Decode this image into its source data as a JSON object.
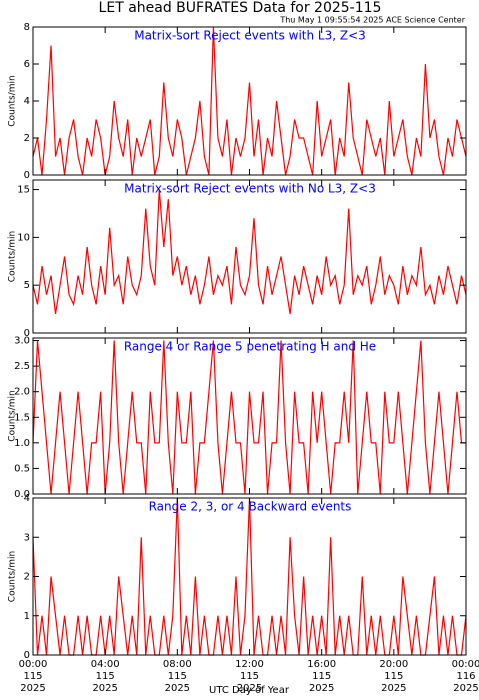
{
  "title": "LET ahead BUFRATES Data for 2025-115",
  "timestamp": "Thu May  1 09:55:54 2025 ACE Science Center",
  "xlabel": "UTC Day of Year",
  "xaxis": {
    "xlim": [
      0,
      24
    ],
    "xticks": [
      {
        "value": 0,
        "label": "00:00"
      },
      {
        "value": 4,
        "label": "04:00"
      },
      {
        "value": 8,
        "label": "08:00"
      },
      {
        "value": 12,
        "label": "12:00"
      },
      {
        "value": 16,
        "label": "16:00"
      },
      {
        "value": 20,
        "label": "20:00"
      },
      {
        "value": 24,
        "label": "00:00"
      }
    ],
    "doy": [
      "115",
      "115",
      "115",
      "115",
      "115",
      "115",
      "116"
    ],
    "year": [
      "2025",
      "2025",
      "2025",
      "2025",
      "2025",
      "2025",
      "2025"
    ]
  },
  "chart_data": [
    {
      "type": "line",
      "title": "Matrix-sort Reject events with L3, Z<3",
      "ylabel": "Counts/min",
      "color": "#ff0000",
      "ylim": [
        0,
        8
      ],
      "yticks": [
        0,
        2,
        4,
        6,
        8
      ],
      "x": [
        0,
        0.25,
        0.5,
        0.75,
        1,
        1.25,
        1.5,
        1.75,
        2,
        2.25,
        2.5,
        2.75,
        3,
        3.25,
        3.5,
        3.75,
        4,
        4.25,
        4.5,
        4.75,
        5,
        5.25,
        5.5,
        5.75,
        6,
        6.25,
        6.5,
        6.75,
        7,
        7.25,
        7.5,
        7.75,
        8,
        8.25,
        8.5,
        8.75,
        9,
        9.25,
        9.5,
        9.75,
        10,
        10.25,
        10.5,
        10.75,
        11,
        11.25,
        11.5,
        11.75,
        12,
        12.25,
        12.5,
        12.75,
        13,
        13.25,
        13.5,
        13.75,
        14,
        14.25,
        14.5,
        14.75,
        15,
        15.25,
        15.5,
        15.75,
        16,
        16.25,
        16.5,
        16.75,
        17,
        17.25,
        17.5,
        17.75,
        18,
        18.25,
        18.5,
        18.75,
        19,
        19.25,
        19.5,
        19.75,
        20,
        20.25,
        20.5,
        20.75,
        21,
        21.25,
        21.5,
        21.75,
        22,
        22.25,
        22.5,
        22.75,
        23,
        23.25,
        23.5,
        23.75,
        24
      ],
      "values": [
        1,
        2,
        0,
        3,
        7,
        1,
        2,
        0,
        2,
        3,
        1,
        0,
        2,
        1,
        3,
        2,
        0,
        1,
        4,
        2,
        1,
        3,
        0,
        2,
        1,
        2,
        3,
        0,
        1,
        5,
        2,
        1,
        3,
        2,
        0,
        1,
        2,
        4,
        1,
        0,
        8,
        2,
        1,
        3,
        0,
        2,
        1,
        2,
        5,
        1,
        3,
        0,
        2,
        1,
        4,
        2,
        0,
        1,
        3,
        2,
        2,
        1,
        0,
        4,
        1,
        2,
        3,
        0,
        2,
        1,
        5,
        2,
        1,
        0,
        3,
        2,
        1,
        2,
        0,
        4,
        1,
        2,
        3,
        1,
        0,
        2,
        1,
        6,
        2,
        3,
        1,
        0,
        2,
        1,
        3,
        2,
        1
      ]
    },
    {
      "type": "line",
      "title": "Matrix-sort Reject events with No L3, Z<3",
      "ylabel": "Counts/min",
      "color": "#ff0000",
      "ylim": [
        0,
        16
      ],
      "yticks": [
        0,
        5,
        10,
        15
      ],
      "x": [
        0,
        0.25,
        0.5,
        0.75,
        1,
        1.25,
        1.5,
        1.75,
        2,
        2.25,
        2.5,
        2.75,
        3,
        3.25,
        3.5,
        3.75,
        4,
        4.25,
        4.5,
        4.75,
        5,
        5.25,
        5.5,
        5.75,
        6,
        6.25,
        6.5,
        6.75,
        7,
        7.25,
        7.5,
        7.75,
        8,
        8.25,
        8.5,
        8.75,
        9,
        9.25,
        9.5,
        9.75,
        10,
        10.25,
        10.5,
        10.75,
        11,
        11.25,
        11.5,
        11.75,
        12,
        12.25,
        12.5,
        12.75,
        13,
        13.25,
        13.5,
        13.75,
        14,
        14.25,
        14.5,
        14.75,
        15,
        15.25,
        15.5,
        15.75,
        16,
        16.25,
        16.5,
        16.75,
        17,
        17.25,
        17.5,
        17.75,
        18,
        18.25,
        18.5,
        18.75,
        19,
        19.25,
        19.5,
        19.75,
        20,
        20.25,
        20.5,
        20.75,
        21,
        21.25,
        21.5,
        21.75,
        22,
        22.25,
        22.5,
        22.75,
        23,
        23.25,
        23.5,
        23.75,
        24
      ],
      "values": [
        5,
        3,
        7,
        4,
        6,
        2,
        5,
        8,
        4,
        3,
        6,
        4,
        9,
        5,
        3,
        7,
        4,
        11,
        5,
        6,
        3,
        8,
        5,
        4,
        6,
        13,
        7,
        5,
        15,
        9,
        14,
        6,
        8,
        5,
        7,
        4,
        6,
        3,
        5,
        8,
        4,
        6,
        5,
        7,
        3,
        9,
        5,
        4,
        6,
        12,
        5,
        3,
        7,
        4,
        6,
        8,
        5,
        2,
        6,
        4,
        7,
        5,
        3,
        6,
        4,
        8,
        5,
        6,
        3,
        5,
        13,
        4,
        6,
        5,
        7,
        3,
        5,
        8,
        4,
        6,
        5,
        3,
        7,
        4,
        6,
        5,
        9,
        4,
        5,
        3,
        6,
        4,
        7,
        5,
        3,
        6,
        4
      ]
    },
    {
      "type": "line",
      "title": "Range 4 or Range 5 penetrating H and He",
      "ylabel": "Counts/min",
      "color": "#ff0000",
      "ylim": [
        0,
        3.05
      ],
      "yticks": [
        {
          "value": 0,
          "label": "0.0"
        },
        {
          "value": 0.5,
          "label": "0.5"
        },
        {
          "value": 1,
          "label": "1.0"
        },
        {
          "value": 1.5,
          "label": "1.5"
        },
        {
          "value": 2,
          "label": "2.0"
        },
        {
          "value": 2.5,
          "label": "2.5"
        },
        {
          "value": 3,
          "label": "3.0"
        }
      ],
      "x": [
        0,
        0.25,
        0.5,
        0.75,
        1,
        1.25,
        1.5,
        1.75,
        2,
        2.25,
        2.5,
        2.75,
        3,
        3.25,
        3.5,
        3.75,
        4,
        4.25,
        4.5,
        4.75,
        5,
        5.25,
        5.5,
        5.75,
        6,
        6.25,
        6.5,
        6.75,
        7,
        7.25,
        7.5,
        7.75,
        8,
        8.25,
        8.5,
        8.75,
        9,
        9.25,
        9.5,
        9.75,
        10,
        10.25,
        10.5,
        10.75,
        11,
        11.25,
        11.5,
        11.75,
        12,
        12.25,
        12.5,
        12.75,
        13,
        13.25,
        13.5,
        13.75,
        14,
        14.25,
        14.5,
        14.75,
        15,
        15.25,
        15.5,
        15.75,
        16,
        16.25,
        16.5,
        16.75,
        17,
        17.25,
        17.5,
        17.75,
        18,
        18.25,
        18.5,
        18.75,
        19,
        19.25,
        19.5,
        19.75,
        20,
        20.25,
        20.5,
        20.75,
        21,
        21.25,
        21.5,
        21.75,
        22,
        22.25,
        22.5,
        22.75,
        23,
        23.25,
        23.5,
        23.75,
        24
      ],
      "values": [
        1,
        3,
        2,
        1,
        0,
        1,
        2,
        1,
        0,
        1,
        2,
        1,
        0,
        1,
        1,
        2,
        0,
        1,
        3,
        1,
        0,
        1,
        2,
        1,
        1,
        0,
        2,
        1,
        1,
        3,
        1,
        0,
        2,
        1,
        1,
        2,
        0,
        1,
        1,
        2,
        3,
        1,
        0,
        1,
        2,
        1,
        1,
        0,
        2,
        1,
        1,
        2,
        0,
        1,
        1,
        3,
        1,
        0,
        2,
        1,
        1,
        0,
        2,
        1,
        2,
        1,
        0,
        1,
        1,
        2,
        1,
        3,
        0,
        1,
        2,
        1,
        1,
        0,
        2,
        1,
        1,
        2,
        1,
        0,
        1,
        2,
        3,
        1,
        0,
        1,
        2,
        1,
        0,
        1,
        2,
        1,
        1
      ]
    },
    {
      "type": "line",
      "title": "Range 2, 3, or 4 Backward events",
      "ylabel": "Counts/min",
      "color": "#ff0000",
      "ylim": [
        0,
        4
      ],
      "yticks": [
        0,
        1,
        2,
        3,
        4
      ],
      "x": [
        0,
        0.25,
        0.5,
        0.75,
        1,
        1.25,
        1.5,
        1.75,
        2,
        2.25,
        2.5,
        2.75,
        3,
        3.25,
        3.5,
        3.75,
        4,
        4.25,
        4.5,
        4.75,
        5,
        5.25,
        5.5,
        5.75,
        6,
        6.25,
        6.5,
        6.75,
        7,
        7.25,
        7.5,
        7.75,
        8,
        8.25,
        8.5,
        8.75,
        9,
        9.25,
        9.5,
        9.75,
        10,
        10.25,
        10.5,
        10.75,
        11,
        11.25,
        11.5,
        11.75,
        12,
        12.25,
        12.5,
        12.75,
        13,
        13.25,
        13.5,
        13.75,
        14,
        14.25,
        14.5,
        14.75,
        15,
        15.25,
        15.5,
        15.75,
        16,
        16.25,
        16.5,
        16.75,
        17,
        17.25,
        17.5,
        17.75,
        18,
        18.25,
        18.5,
        18.75,
        19,
        19.25,
        19.5,
        19.75,
        20,
        20.25,
        20.5,
        20.75,
        21,
        21.25,
        21.5,
        21.75,
        22,
        22.25,
        22.5,
        22.75,
        23,
        23.25,
        23.5,
        23.75,
        24
      ],
      "values": [
        3,
        0,
        1,
        0,
        2,
        1,
        0,
        1,
        0,
        0,
        1,
        0,
        1,
        0,
        0,
        1,
        0,
        1,
        0,
        2,
        1,
        0,
        1,
        0,
        3,
        0,
        1,
        0,
        0,
        1,
        0,
        1,
        4,
        0,
        1,
        0,
        2,
        0,
        1,
        0,
        0,
        1,
        0,
        1,
        0,
        2,
        0,
        1,
        4,
        0,
        1,
        0,
        0,
        1,
        0,
        1,
        0,
        3,
        1,
        0,
        2,
        0,
        1,
        0,
        1,
        0,
        3,
        0,
        1,
        0,
        1,
        0,
        0,
        2,
        0,
        1,
        0,
        1,
        0,
        0,
        1,
        0,
        2,
        1,
        0,
        1,
        0,
        0,
        1,
        2,
        0,
        1,
        0,
        1,
        0,
        0,
        1
      ]
    }
  ]
}
